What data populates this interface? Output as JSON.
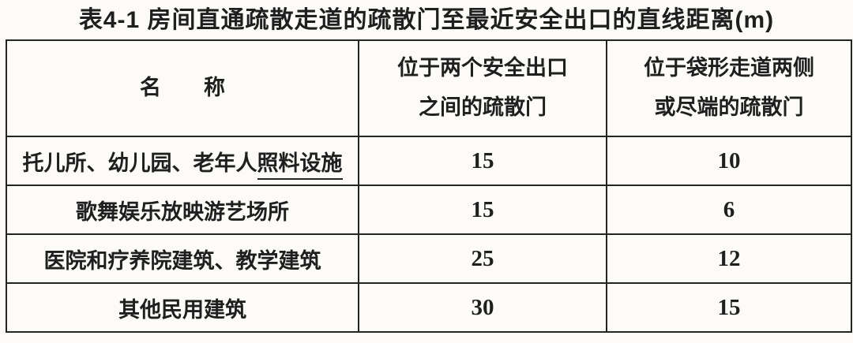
{
  "title": "表4-1 房间直通疏散走道的疏散门至最近安全出口的直线距离(m)",
  "table": {
    "headers": [
      {
        "label": "名　　称"
      },
      {
        "lines": [
          "位于两个安全出口",
          "之间的疏散门"
        ]
      },
      {
        "lines": [
          "位于袋形走道两侧",
          "或尽端的疏散门"
        ]
      }
    ],
    "rows": [
      {
        "name_prefix": "托儿所、幼儿园、老年人",
        "name_underlined": "照料设施",
        "between_exits": "15",
        "dead_end": "10"
      },
      {
        "name_prefix": "歌舞娱乐放映游艺场所",
        "name_underlined": "",
        "between_exits": "15",
        "dead_end": "6"
      },
      {
        "name_prefix": "医院和疗养院建筑、教学建筑",
        "name_underlined": "",
        "between_exits": "25",
        "dead_end": "12"
      },
      {
        "name_prefix": "其他民用建筑",
        "name_underlined": "",
        "between_exits": "30",
        "dead_end": "15"
      }
    ]
  },
  "chart_data": {
    "type": "table",
    "title": "表4-1 房间直通疏散走道的疏散门至最近安全出口的直线距离(m)",
    "columns": [
      "名称",
      "位于两个安全出口之间的疏散门",
      "位于袋形走道两侧或尽端的疏散门"
    ],
    "rows": [
      [
        "托儿所、幼儿园、老年人照料设施",
        15,
        10
      ],
      [
        "歌舞娱乐放映游艺场所",
        15,
        6
      ],
      [
        "医院和疗养院建筑、教学建筑",
        25,
        12
      ],
      [
        "其他民用建筑",
        30,
        15
      ]
    ]
  }
}
